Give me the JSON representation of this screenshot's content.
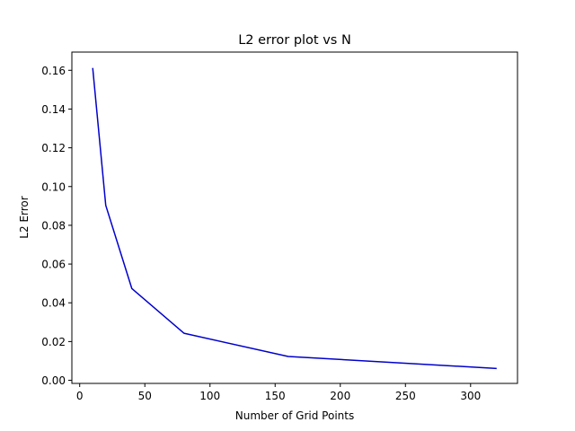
{
  "chart_data": {
    "type": "line",
    "title": "L2 error plot vs N",
    "xlabel": "Number of Grid Points",
    "ylabel": "L2 Error",
    "xlim": [
      -6,
      336
    ],
    "ylim": [
      -0.0016,
      0.1694
    ],
    "xticks": [
      0,
      50,
      100,
      150,
      200,
      250,
      300
    ],
    "xtick_labels": [
      "0",
      "50",
      "100",
      "150",
      "200",
      "250",
      "300"
    ],
    "yticks": [
      0.0,
      0.02,
      0.04,
      0.06,
      0.08,
      0.1,
      0.12,
      0.14,
      0.16
    ],
    "ytick_labels": [
      "0.00",
      "0.02",
      "0.04",
      "0.06",
      "0.08",
      "0.10",
      "0.12",
      "0.14",
      "0.16"
    ],
    "grid": false,
    "series": [
      {
        "color": "#0000cc",
        "x": [
          10,
          20,
          40,
          80,
          160,
          320
        ],
        "y": [
          0.1612,
          0.0903,
          0.0474,
          0.0243,
          0.0123,
          0.0061
        ]
      }
    ]
  }
}
